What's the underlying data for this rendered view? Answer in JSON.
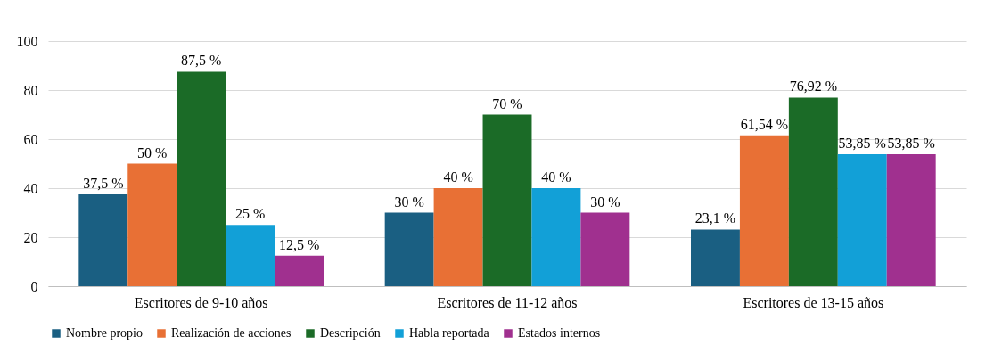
{
  "chart_data": {
    "type": "bar",
    "categories": [
      "Escritores de 9-10 años",
      "Escritores de 11-12 años",
      "Escritores de 13-15 años"
    ],
    "ylim": [
      0,
      100
    ],
    "yticks": [
      0,
      20,
      40,
      60,
      80,
      100
    ],
    "grid": "y",
    "legend": "bottom",
    "series": [
      {
        "name": "Nombre propio",
        "color": "#1a5f82",
        "values": [
          37.5,
          30,
          23.1
        ],
        "value_labels": [
          "37,5 %",
          "30 %",
          "23,1 %"
        ]
      },
      {
        "name": "Realización de acciones",
        "color": "#e87035",
        "values": [
          50,
          40,
          61.54
        ],
        "value_labels": [
          "50 %",
          "40 %",
          "61,54 %"
        ]
      },
      {
        "name": "Descripción",
        "color": "#1b6b27",
        "values": [
          87.5,
          70,
          76.92
        ],
        "value_labels": [
          "87,5 %",
          "70 %",
          "76,92 %"
        ]
      },
      {
        "name": "Habla reportada",
        "color": "#12a0d7",
        "values": [
          25,
          40,
          53.85
        ],
        "value_labels": [
          "25 %",
          "40 %",
          "53,85 %"
        ]
      },
      {
        "name": "Estados internos",
        "color": "#a0308f",
        "values": [
          12.5,
          30,
          53.85
        ],
        "value_labels": [
          "12,5 %",
          "30 %",
          "53,85 %"
        ]
      }
    ]
  }
}
